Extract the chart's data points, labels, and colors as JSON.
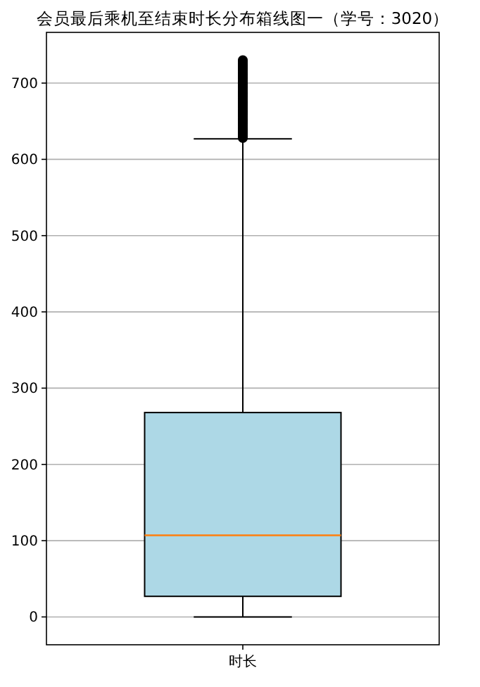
{
  "chart_data": {
    "type": "box",
    "title": "会员最后乘机至结束时长分布箱线图一（学号：3020）",
    "categories": [
      "时长"
    ],
    "colors": [
      "#add8e6"
    ],
    "boxes": [
      {
        "low": 0,
        "q1": 27,
        "median": 107,
        "q3": 268,
        "high": 627,
        "outliers": [
          628,
          630,
          632,
          634,
          636,
          638,
          640,
          642,
          644,
          646,
          648,
          650,
          652,
          654,
          656,
          658,
          660,
          662,
          664,
          666,
          668,
          670,
          672,
          674,
          676,
          678,
          680,
          682,
          684,
          686,
          688,
          690,
          692,
          694,
          696,
          698,
          700,
          702,
          704,
          706,
          708,
          710,
          712,
          714,
          716,
          718,
          720,
          722,
          724,
          726,
          728,
          730
        ]
      }
    ],
    "ylim": [
      -36.5,
      766.5
    ],
    "yticks": [
      0,
      100,
      200,
      300,
      400,
      500,
      600,
      700
    ],
    "grid": "y"
  }
}
